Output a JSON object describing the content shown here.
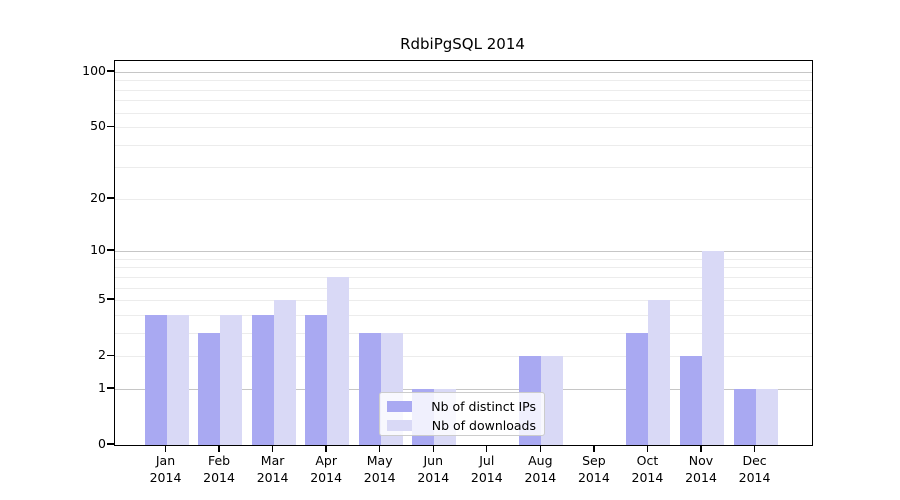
{
  "title": "RdbiPgSQL 2014",
  "chart_data": {
    "type": "bar",
    "categories": [
      "Jan",
      "Feb",
      "Mar",
      "Apr",
      "May",
      "Jun",
      "Jul",
      "Aug",
      "Sep",
      "Oct",
      "Nov",
      "Dec"
    ],
    "x_tick_year": "2014",
    "series": [
      {
        "name": "Nb of distinct IPs",
        "color": "#a9a9f2",
        "values": [
          4,
          3,
          4,
          4,
          3,
          1,
          0,
          2,
          0,
          3,
          2,
          1
        ]
      },
      {
        "name": "Nb of downloads",
        "color": "#d9d9f6",
        "values": [
          4,
          4,
          5,
          7,
          3,
          1,
          0,
          2,
          0,
          5,
          10,
          1
        ]
      }
    ],
    "title": "RdbiPgSQL 2014",
    "xlabel": "",
    "ylabel": "",
    "ylim": [
      0,
      100
    ],
    "y_scale": "log10(value+1)",
    "y_tick_labels": [
      100,
      50,
      20,
      10,
      5,
      2,
      1,
      0
    ],
    "y_major_gridlines": [
      1,
      10,
      100
    ],
    "y_minor_gridlines": [
      2,
      3,
      4,
      5,
      6,
      7,
      8,
      9,
      20,
      30,
      40,
      50,
      60,
      70,
      80,
      90
    ],
    "grid": true,
    "legend_position": "lower center"
  },
  "colors": {
    "major_grid": "#c6c6c6",
    "minor_grid": "#ececec",
    "axis": "#000000",
    "legend_border": "#cccccc"
  }
}
